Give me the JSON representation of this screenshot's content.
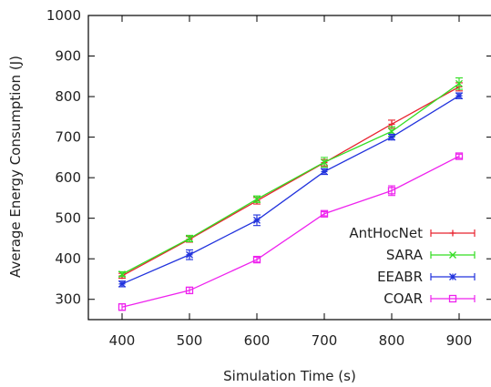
{
  "chart_data": {
    "type": "line",
    "xlabel": "Simulation Time (s)",
    "ylabel": "Average Energy Consumption (J)",
    "x": [
      400,
      500,
      600,
      700,
      800,
      900
    ],
    "xlim": [
      350,
      950
    ],
    "ylim": [
      250,
      1000
    ],
    "x_ticks": [
      "400",
      "500",
      "600",
      "700",
      "800",
      "900"
    ],
    "y_ticks": [
      "300",
      "400",
      "500",
      "600",
      "700",
      "800",
      "900",
      "1000"
    ],
    "grid": false,
    "legend_position": "right",
    "series": [
      {
        "name": "AntHocNet",
        "color": "#e8232f",
        "marker": "plus",
        "values": [
          358,
          448,
          543,
          637,
          732,
          824
        ],
        "errors": [
          6,
          7,
          8,
          8,
          10,
          10
        ]
      },
      {
        "name": "SARA",
        "color": "#33dd22",
        "marker": "cross",
        "values": [
          362,
          450,
          547,
          638,
          714,
          832
        ],
        "errors": [
          6,
          8,
          8,
          12,
          12,
          14
        ]
      },
      {
        "name": "EEABR",
        "color": "#2233dd",
        "marker": "star",
        "values": [
          338,
          410,
          495,
          615,
          700,
          802
        ],
        "errors": [
          7,
          12,
          13,
          7,
          7,
          7
        ]
      },
      {
        "name": "COAR",
        "color": "#ee22ee",
        "marker": "square",
        "values": [
          281,
          322,
          398,
          511,
          568,
          653
        ],
        "errors": [
          8,
          8,
          6,
          5,
          12,
          5
        ]
      }
    ]
  }
}
